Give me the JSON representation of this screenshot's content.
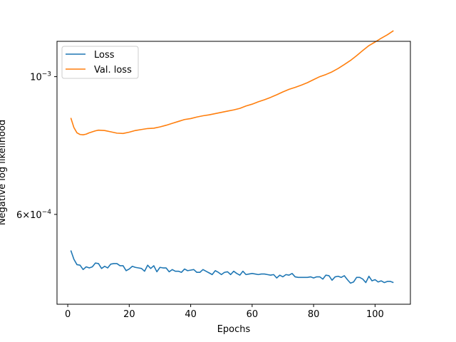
{
  "chart_data": {
    "type": "line",
    "xlabel": "Epochs",
    "ylabel": "Negative log likelihood",
    "xlim": [
      -3.5,
      111.5
    ],
    "ylim": [
      0.00043,
      0.00114
    ],
    "yscale": "log",
    "grid": false,
    "legend_position": "top-left",
    "x_ticks": [
      0,
      20,
      40,
      60,
      80,
      100
    ],
    "x_tick_labels": [
      "0",
      "20",
      "40",
      "60",
      "80",
      "100"
    ],
    "y_ticks": [
      0.001,
      0.0006
    ],
    "y_tick_labels": [
      {
        "base": "10",
        "sup": "−3"
      },
      {
        "base": "6×10",
        "sup": "−4"
      }
    ],
    "series": [
      {
        "name": "Loss",
        "color": "#1f77b4",
        "x": [
          1,
          2,
          3,
          4,
          5,
          6,
          7,
          8,
          9,
          10,
          11,
          12,
          13,
          14,
          15,
          16,
          17,
          18,
          19,
          20,
          21,
          22,
          23,
          24,
          25,
          26,
          27,
          28,
          29,
          30,
          31,
          32,
          33,
          34,
          35,
          36,
          37,
          38,
          39,
          40,
          41,
          42,
          43,
          44,
          45,
          46,
          47,
          48,
          49,
          50,
          51,
          52,
          53,
          54,
          55,
          56,
          57,
          58,
          59,
          60,
          61,
          62,
          63,
          64,
          65,
          66,
          67,
          68,
          69,
          70,
          71,
          72,
          73,
          74,
          75,
          76,
          77,
          78,
          79,
          80,
          81,
          82,
          83,
          84,
          85,
          86,
          87,
          88,
          89,
          90,
          91,
          92,
          93,
          94,
          95,
          96,
          97,
          98,
          99,
          100,
          101,
          102,
          103,
          104,
          105,
          106
        ],
        "values": [
          0.000525,
          0.000508,
          0.000498,
          0.000497,
          0.000489,
          0.000494,
          0.000492,
          0.000494,
          0.000501,
          0.0005,
          0.000491,
          0.000495,
          0.000492,
          0.000499,
          0.0005,
          0.0005,
          0.000496,
          0.000496,
          0.000487,
          0.00049,
          0.000495,
          0.000493,
          0.000492,
          0.000491,
          0.000486,
          0.000497,
          0.000491,
          0.000496,
          0.000485,
          0.000493,
          0.000492,
          0.000492,
          0.000485,
          0.000489,
          0.000486,
          0.000486,
          0.000484,
          0.00049,
          0.000487,
          0.000488,
          0.000489,
          0.000484,
          0.000484,
          0.000489,
          0.000486,
          0.000483,
          0.00048,
          0.000487,
          0.000484,
          0.00048,
          0.000484,
          0.000485,
          0.00048,
          0.000486,
          0.000482,
          0.000479,
          0.000486,
          0.00048,
          0.000481,
          0.000482,
          0.000481,
          0.00048,
          0.000481,
          0.000481,
          0.00048,
          0.000479,
          0.00048,
          0.000474,
          0.000479,
          0.000476,
          0.00048,
          0.000479,
          0.000482,
          0.000476,
          0.000475,
          0.000475,
          0.000475,
          0.000475,
          0.000476,
          0.000474,
          0.000476,
          0.000476,
          0.000472,
          0.000479,
          0.000478,
          0.00047,
          0.000476,
          0.000477,
          0.000475,
          0.000478,
          0.000471,
          0.000465,
          0.000467,
          0.000475,
          0.000475,
          0.000472,
          0.000466,
          0.000477,
          0.000469,
          0.000471,
          0.000467,
          0.000469,
          0.000466,
          0.000468,
          0.000468,
          0.000466
        ]
      },
      {
        "name": "Val. loss",
        "color": "#ff7f0e",
        "x": [
          1,
          2,
          3,
          4,
          5,
          6,
          7,
          8,
          9,
          10,
          12,
          14,
          16,
          18,
          20,
          22,
          24,
          26,
          28,
          30,
          32,
          34,
          36,
          38,
          40,
          42,
          44,
          46,
          48,
          50,
          52,
          54,
          56,
          58,
          60,
          62,
          64,
          66,
          68,
          70,
          72,
          74,
          76,
          78,
          80,
          82,
          84,
          86,
          88,
          90,
          92,
          94,
          96,
          98,
          100,
          102,
          104,
          106
        ],
        "values": [
          0.000858,
          0.000828,
          0.000812,
          0.000807,
          0.000806,
          0.000808,
          0.000812,
          0.000815,
          0.000818,
          0.00082,
          0.000819,
          0.000815,
          0.000811,
          0.00081,
          0.000814,
          0.000819,
          0.000822,
          0.000825,
          0.000826,
          0.00083,
          0.000835,
          0.000841,
          0.000847,
          0.000853,
          0.000856,
          0.000861,
          0.000865,
          0.000868,
          0.000872,
          0.000876,
          0.00088,
          0.000884,
          0.000889,
          0.000897,
          0.000903,
          0.000911,
          0.000918,
          0.000926,
          0.000935,
          0.000945,
          0.000954,
          0.000961,
          0.000969,
          0.000978,
          0.000989,
          0.001,
          0.001008,
          0.001018,
          0.001031,
          0.001046,
          0.001062,
          0.001081,
          0.001102,
          0.001122,
          0.001137,
          0.001153,
          0.001168,
          0.001186
        ]
      }
    ]
  }
}
